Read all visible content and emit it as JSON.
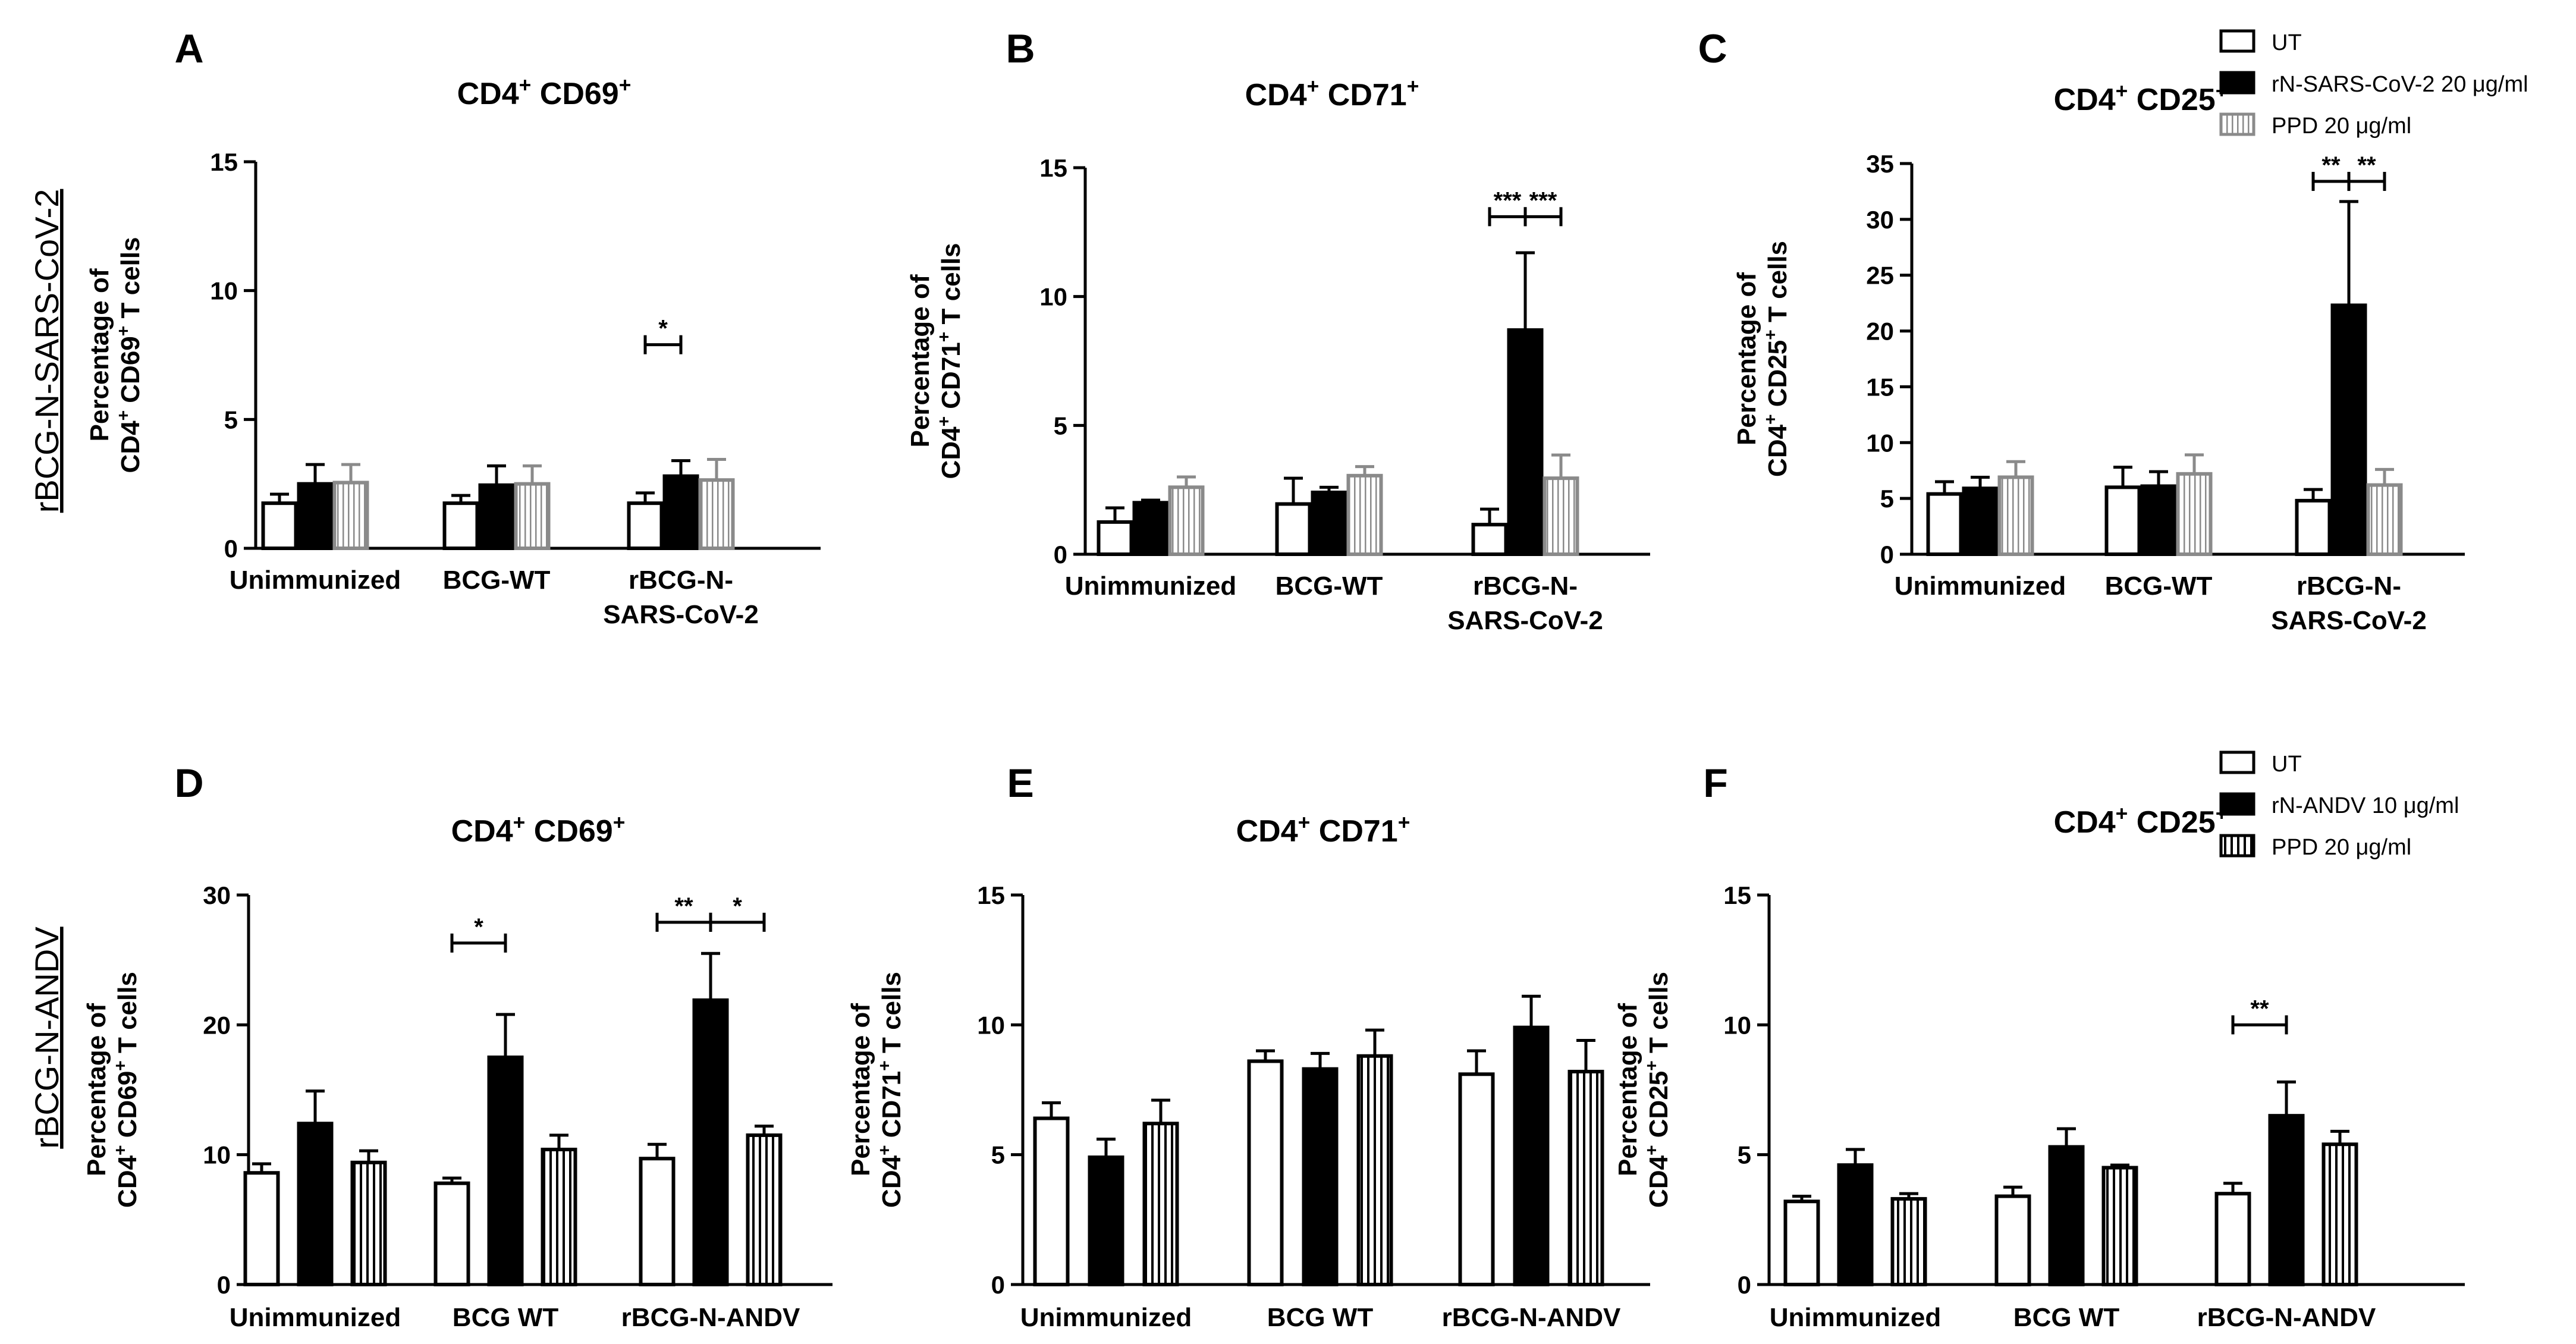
{
  "figure": {
    "row_labels": [
      "rBCG-N-SARS-CoV-2",
      "rBCG-N-ANDV"
    ],
    "legends": [
      {
        "items": [
          "UT",
          "rN-SARS-CoV-2 20 μg/ml",
          "PPD 20 μg/ml"
        ]
      },
      {
        "items": [
          "UT",
          "rN-ANDV 10 μg/ml",
          "PPD 20 μg/ml"
        ]
      }
    ]
  },
  "chart_data": [
    {
      "panel": "A",
      "type": "bar",
      "title": "CD4+ CD69+",
      "title_parts": [
        "CD4",
        "+",
        " CD69",
        "+"
      ],
      "ylabel_line1": "Percentage of",
      "ylabel_line2": [
        "CD4",
        "+",
        " CD69",
        "+",
        " T cells"
      ],
      "ylim": [
        0,
        15
      ],
      "yticks": [
        0,
        5,
        10,
        15
      ],
      "yticklabels": [
        "0",
        "5",
        "10",
        "15"
      ],
      "categories": [
        [
          "Unimmunized"
        ],
        [
          "BCG-WT"
        ],
        [
          "rBCG-N-",
          "SARS-CoV-2"
        ]
      ],
      "series": [
        {
          "name": "UT",
          "values": [
            1.75,
            1.75,
            1.75
          ],
          "errors": [
            0.35,
            0.3,
            0.4
          ]
        },
        {
          "name": "rN-SARS-CoV-2 20 μg/ml",
          "values": [
            2.5,
            2.45,
            2.8
          ],
          "errors": [
            0.75,
            0.75,
            0.6
          ]
        },
        {
          "name": "PPD 20 μg/ml",
          "values": [
            2.55,
            2.5,
            2.65
          ],
          "errors": [
            0.7,
            0.7,
            0.8
          ]
        }
      ],
      "sig": [
        {
          "from": [
            2,
            0
          ],
          "to": [
            2,
            1
          ],
          "label": "*",
          "y": 7.9
        }
      ]
    },
    {
      "panel": "B",
      "type": "bar",
      "title": "CD4+ CD71+",
      "title_parts": [
        "CD4",
        "+",
        " CD71",
        "+"
      ],
      "ylabel_line1": "Percentage of",
      "ylabel_line2": [
        "CD4",
        "+",
        " CD71",
        "+",
        " T cells"
      ],
      "ylim": [
        0,
        15
      ],
      "yticks": [
        0,
        5,
        10,
        15
      ],
      "yticklabels": [
        "0",
        "5",
        "10",
        "15"
      ],
      "categories": [
        [
          "Unimmunized"
        ],
        [
          "BCG-WT"
        ],
        [
          "rBCG-N-",
          "SARS-CoV-2"
        ]
      ],
      "series": [
        {
          "name": "UT",
          "values": [
            1.25,
            1.95,
            1.15
          ],
          "errors": [
            0.55,
            1.0,
            0.6
          ]
        },
        {
          "name": "rN-SARS-CoV-2 20 μg/ml",
          "values": [
            2.0,
            2.4,
            8.7
          ],
          "errors": [
            0.1,
            0.2,
            3.0
          ]
        },
        {
          "name": "PPD 20 μg/ml",
          "values": [
            2.6,
            3.05,
            2.95
          ],
          "errors": [
            0.4,
            0.35,
            0.9
          ]
        }
      ],
      "sig": [
        {
          "from": [
            2,
            0
          ],
          "to": [
            2,
            1
          ],
          "label": "***",
          "y": 13.1
        },
        {
          "from": [
            2,
            1
          ],
          "to": [
            2,
            2
          ],
          "label": "***",
          "y": 13.1
        }
      ]
    },
    {
      "panel": "C",
      "type": "bar",
      "title": "CD4+ CD25+",
      "title_parts": [
        "CD4",
        "+",
        " CD25",
        "+"
      ],
      "ylabel_line1": "Percentage of",
      "ylabel_line2": [
        "CD4",
        "+",
        " CD25",
        "+",
        " T cells"
      ],
      "ylim": [
        0,
        35
      ],
      "yticks": [
        0,
        5,
        10,
        15,
        20,
        25,
        30,
        35
      ],
      "yticklabels": [
        "0",
        "5",
        "10",
        "15",
        "20",
        "25",
        "30",
        "35"
      ],
      "categories": [
        [
          "Unimmunized"
        ],
        [
          "BCG-WT"
        ],
        [
          "rBCG-N-",
          "SARS-CoV-2"
        ]
      ],
      "series": [
        {
          "name": "UT",
          "values": [
            5.4,
            6.0,
            4.8
          ],
          "errors": [
            1.1,
            1.8,
            1.0
          ]
        },
        {
          "name": "rN-SARS-CoV-2 20 μg/ml",
          "values": [
            5.9,
            6.1,
            22.3
          ],
          "errors": [
            1.0,
            1.3,
            9.3
          ]
        },
        {
          "name": "PPD 20 μg/ml",
          "values": [
            6.9,
            7.2,
            6.2
          ],
          "errors": [
            1.4,
            1.7,
            1.4
          ]
        }
      ],
      "sig": [
        {
          "from": [
            2,
            0
          ],
          "to": [
            2,
            1
          ],
          "label": "**",
          "y": 33.4
        },
        {
          "from": [
            2,
            1
          ],
          "to": [
            2,
            2
          ],
          "label": "**",
          "y": 33.4
        }
      ]
    },
    {
      "panel": "D",
      "type": "bar",
      "title": "CD4+ CD69+",
      "title_parts": [
        "CD4",
        "+",
        " CD69",
        "+"
      ],
      "ylabel_line1": "Percentage of",
      "ylabel_line2": [
        "CD4",
        "+",
        " CD69",
        "+",
        " T cells"
      ],
      "ylim": [
        0,
        30
      ],
      "yticks": [
        0,
        10,
        20,
        30
      ],
      "yticklabels": [
        "0",
        "10",
        "20",
        "30"
      ],
      "categories": [
        [
          "Unimmunized"
        ],
        [
          "BCG WT"
        ],
        [
          "rBCG-N-ANDV"
        ]
      ],
      "series": [
        {
          "name": "UT",
          "values": [
            8.6,
            7.8,
            9.7
          ],
          "errors": [
            0.7,
            0.4,
            1.1
          ]
        },
        {
          "name": "rN-ANDV 10 μg/ml",
          "values": [
            12.4,
            17.5,
            21.9
          ],
          "errors": [
            2.5,
            3.3,
            3.6
          ]
        },
        {
          "name": "PPD 20 μg/ml",
          "values": [
            9.4,
            10.4,
            11.5
          ],
          "errors": [
            0.9,
            1.1,
            0.7
          ]
        }
      ],
      "sig": [
        {
          "from": [
            1,
            0
          ],
          "to": [
            1,
            1
          ],
          "label": "*",
          "y": 26.3
        },
        {
          "from": [
            2,
            0
          ],
          "to": [
            2,
            1
          ],
          "label": "**",
          "y": 27.9
        },
        {
          "from": [
            2,
            1
          ],
          "to": [
            2,
            2
          ],
          "label": "*",
          "y": 27.9
        }
      ]
    },
    {
      "panel": "E",
      "type": "bar",
      "title": "CD4+ CD71+",
      "title_parts": [
        "CD4",
        "+",
        " CD71",
        "+"
      ],
      "ylabel_line1": "Percentage of",
      "ylabel_line2": [
        "CD4",
        "+",
        " CD71",
        "+",
        " T cells"
      ],
      "ylim": [
        0,
        15
      ],
      "yticks": [
        0,
        5,
        10,
        15
      ],
      "yticklabels": [
        "0",
        "5",
        "10",
        "15"
      ],
      "categories": [
        [
          "Unimmunized"
        ],
        [
          "BCG WT"
        ],
        [
          "rBCG-N-ANDV"
        ]
      ],
      "series": [
        {
          "name": "UT",
          "values": [
            6.4,
            8.6,
            8.1
          ],
          "errors": [
            0.6,
            0.4,
            0.9
          ]
        },
        {
          "name": "rN-ANDV 10 μg/ml",
          "values": [
            4.9,
            8.3,
            9.9
          ],
          "errors": [
            0.7,
            0.6,
            1.2
          ]
        },
        {
          "name": "PPD 20 μg/ml",
          "values": [
            6.2,
            8.8,
            8.2
          ],
          "errors": [
            0.9,
            1.0,
            1.2
          ]
        }
      ],
      "sig": []
    },
    {
      "panel": "F",
      "type": "bar",
      "title": "CD4+ CD25+",
      "title_parts": [
        "CD4",
        "+",
        " CD25",
        "+"
      ],
      "ylabel_line1": "Percentage of",
      "ylabel_line2": [
        "CD4",
        "+",
        " CD25",
        "+",
        " T cells"
      ],
      "ylim": [
        0,
        15
      ],
      "yticks": [
        0,
        5,
        10,
        15
      ],
      "yticklabels": [
        "0",
        "5",
        "10",
        "15"
      ],
      "categories": [
        [
          "Unimmunized"
        ],
        [
          "BCG WT"
        ],
        [
          "rBCG-N-ANDV"
        ]
      ],
      "series": [
        {
          "name": "UT",
          "values": [
            3.2,
            3.4,
            3.5
          ],
          "errors": [
            0.2,
            0.35,
            0.4
          ]
        },
        {
          "name": "rN-ANDV 10 μg/ml",
          "values": [
            4.6,
            5.3,
            6.5
          ],
          "errors": [
            0.6,
            0.7,
            1.3
          ]
        },
        {
          "name": "PPD 20 μg/ml",
          "values": [
            3.3,
            4.5,
            5.4
          ],
          "errors": [
            0.2,
            0.1,
            0.5
          ]
        }
      ],
      "sig": [
        {
          "from": [
            2,
            0
          ],
          "to": [
            2,
            1
          ],
          "label": "**",
          "y": 10.0
        }
      ]
    }
  ]
}
